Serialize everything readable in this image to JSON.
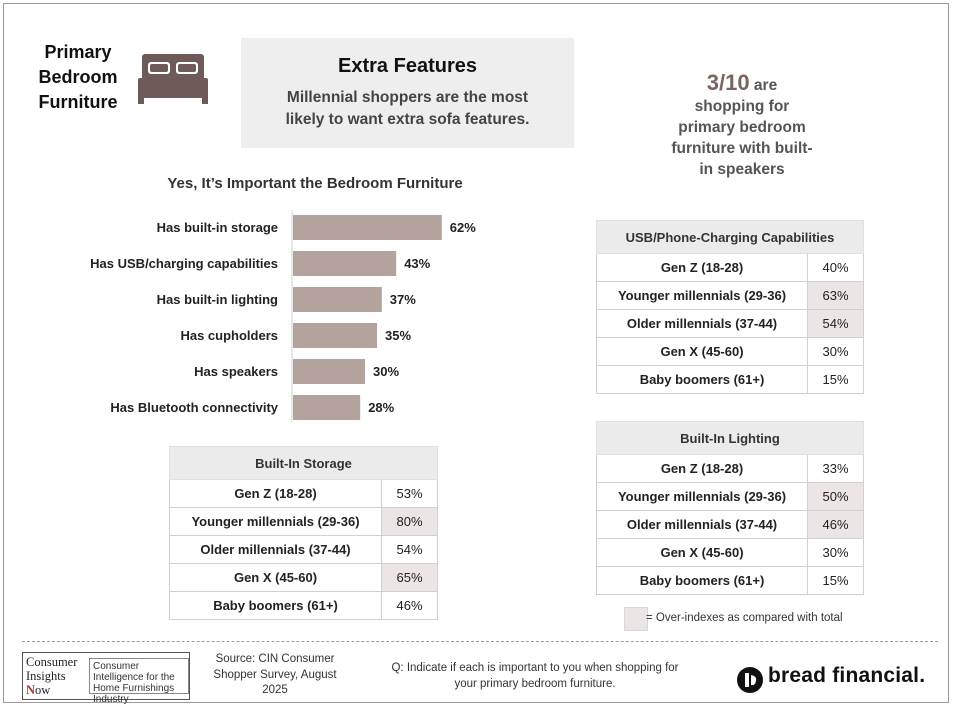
{
  "header": {
    "section_title": "Primary Bedroom Furniture",
    "features_title": "Extra Features",
    "features_subtitle": "Millennial shoppers are the most likely to want extra sofa features.",
    "callout_number": "3/10",
    "callout_text_1": "are",
    "callout_text_2": "shopping for primary bedroom furniture with built-in speakers"
  },
  "chart_data": {
    "type": "bar",
    "orientation": "horizontal",
    "title": "Yes, It’s Important the Bedroom Furniture",
    "categories": [
      "Has built-in storage",
      "Has USB/charging capabilities",
      "Has built-in lighting",
      "Has cupholders",
      "Has speakers",
      "Has Bluetooth connectivity"
    ],
    "values": [
      62,
      43,
      37,
      35,
      30,
      28
    ],
    "value_labels": [
      "62%",
      "43%",
      "37%",
      "35%",
      "30%",
      "28%"
    ],
    "bar_color": "#b4a29c",
    "grid": false
  },
  "tables": {
    "storage": {
      "title": "Built-In Storage",
      "rows": [
        {
          "label": "Gen Z (18-28)",
          "value": "53%",
          "over": false
        },
        {
          "label": "Younger millennials (29-36)",
          "value": "80%",
          "over": true
        },
        {
          "label": "Older millennials (37-44)",
          "value": "54%",
          "over": false
        },
        {
          "label": "Gen X (45-60)",
          "value": "65%",
          "over": true
        },
        {
          "label": "Baby boomers (61+)",
          "value": "46%",
          "over": false
        }
      ]
    },
    "usb": {
      "title": "USB/Phone-Charging Capabilities",
      "rows": [
        {
          "label": "Gen Z (18-28)",
          "value": "40%",
          "over": false
        },
        {
          "label": "Younger millennials (29-36)",
          "value": "63%",
          "over": true
        },
        {
          "label": "Older millennials (37-44)",
          "value": "54%",
          "over": true
        },
        {
          "label": "Gen X (45-60)",
          "value": "30%",
          "over": false
        },
        {
          "label": "Baby boomers (61+)",
          "value": "15%",
          "over": false
        }
      ]
    },
    "lighting": {
      "title": "Built-In Lighting",
      "rows": [
        {
          "label": "Gen Z (18-28)",
          "value": "33%",
          "over": false
        },
        {
          "label": "Younger millennials (29-36)",
          "value": "50%",
          "over": true
        },
        {
          "label": "Older millennials (37-44)",
          "value": "46%",
          "over": true
        },
        {
          "label": "Gen X (45-60)",
          "value": "30%",
          "over": false
        },
        {
          "label": "Baby boomers (61+)",
          "value": "15%",
          "over": false
        }
      ]
    }
  },
  "legend": {
    "text": "= Over-indexes as compared with total",
    "swatch_color": "#ebe6e5"
  },
  "footer": {
    "logo_line1": "Consumer",
    "logo_line2": "Insights",
    "logo_line3_n": "N",
    "logo_line3_rest": "ow",
    "logo_desc": "Consumer Intelligence for the Home Furnishings Industry",
    "source": "Source: CIN Consumer Shopper Survey, August 2025",
    "question": "Q:  Indicate if each is important to you when shopping for your primary bedroom furniture.",
    "brand": "bread financial.",
    "brand_icon": "bread-financial-logo-icon"
  }
}
